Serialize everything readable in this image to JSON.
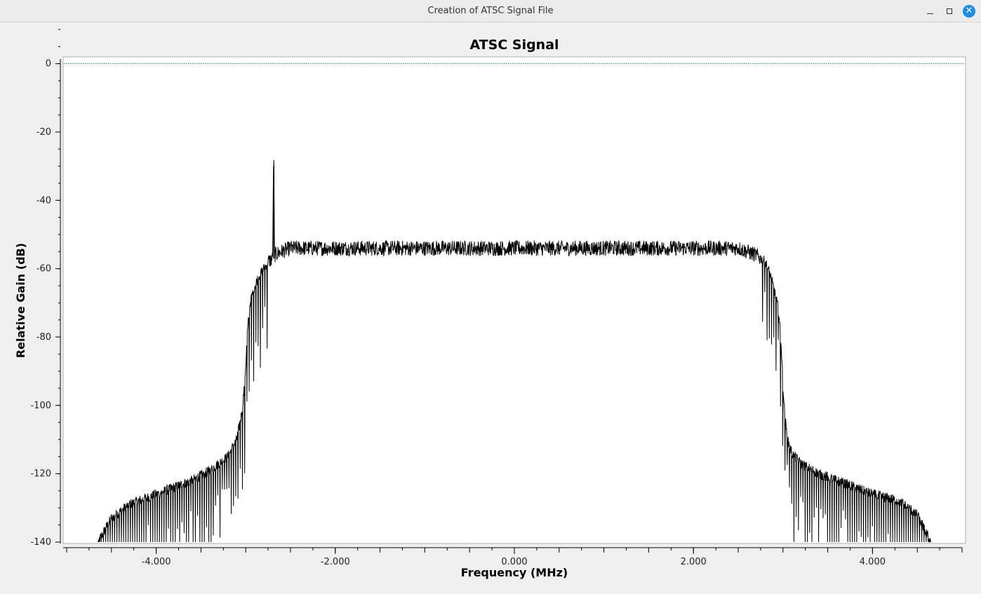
{
  "window": {
    "title": "Creation of ATSC Signal File",
    "minimize_icon": "minimize-icon",
    "maximize_icon": "maximize-icon",
    "close_icon": "close-icon",
    "close_color": "#1d8ee0"
  },
  "chart_data": {
    "type": "line",
    "title": "ATSC Signal",
    "xlabel": "Frequency (MHz)",
    "ylabel": "Relative Gain (dB)",
    "xlim": [
      -5.0,
      5.0
    ],
    "ylim": [
      -140,
      10
    ],
    "x_ticks": [
      -4.0,
      -2.0,
      0.0,
      2.0,
      4.0
    ],
    "x_tick_labels": [
      "-4.000",
      "-2.000",
      "0.000",
      "2.000",
      "4.000"
    ],
    "y_ticks": [
      0,
      -20,
      -40,
      -60,
      -80,
      -100,
      -120,
      -140
    ],
    "y_tick_labels": [
      "0",
      "-20",
      "-40",
      "-60",
      "-80",
      "-100",
      "-120",
      "-140"
    ],
    "reference_line": {
      "y": 0,
      "color": "#1a7fa0",
      "style": "dotted"
    },
    "grid": false,
    "legend": "none",
    "series_color": "#000000",
    "series": [
      {
        "x": [
          -4.65,
          -4.5,
          -4.3,
          -4.0,
          -3.8,
          -3.6,
          -3.4,
          -3.2,
          -3.1,
          -3.05,
          -3.02,
          -3.0,
          -2.98,
          -2.95,
          -2.9,
          -2.85,
          -2.8,
          -2.75,
          -2.7,
          -2.69,
          -2.685,
          -2.68,
          -2.6,
          -2.5,
          -2.0,
          -1.0,
          0.0,
          1.0,
          2.0,
          2.5,
          2.6,
          2.7,
          2.8,
          2.85,
          2.9,
          2.95,
          2.98,
          3.0,
          3.02,
          3.05,
          3.1,
          3.2,
          3.4,
          3.6,
          3.8,
          4.0,
          4.3,
          4.5,
          4.65
        ],
        "y": [
          -140,
          -133,
          -129,
          -126,
          -124,
          -122,
          -119,
          -115,
          -110,
          -103,
          -96,
          -88,
          -78,
          -70,
          -65,
          -62,
          -60,
          -58,
          -57,
          -30,
          -30,
          -56,
          -55,
          -54,
          -54,
          -54,
          -54,
          -54,
          -54,
          -54,
          -55,
          -56,
          -58,
          -61,
          -66,
          -72,
          -82,
          -94,
          -103,
          -110,
          -114,
          -117,
          -120,
          -122,
          -124,
          -126,
          -128,
          -132,
          -140
        ]
      }
    ]
  }
}
